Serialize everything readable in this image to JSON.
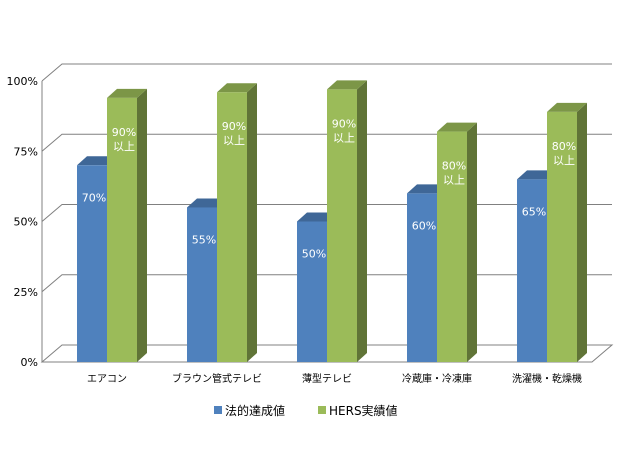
{
  "chart_data": {
    "type": "bar",
    "categories": [
      "エアコン",
      "ブラウン管式テレビ",
      "薄型テレビ",
      "冷蔵庫・冷凍庫",
      "洗濯機・乾燥機"
    ],
    "series": [
      {
        "name": "法的達成値",
        "color": "#4f81bd",
        "values": [
          70,
          55,
          50,
          60,
          65
        ],
        "labels": [
          "70%",
          "55%",
          "50%",
          "60%",
          "65%"
        ]
      },
      {
        "name": "HERS実績値",
        "color": "#9bbb59",
        "values": [
          94,
          96,
          97,
          82,
          89
        ],
        "labels": [
          [
            "90%",
            "以上"
          ],
          [
            "90%",
            "以上"
          ],
          [
            "90%",
            "以上"
          ],
          [
            "80%",
            "以上"
          ],
          [
            "80%",
            "以上"
          ]
        ]
      }
    ],
    "yticks": [
      "0%",
      "25%",
      "50%",
      "75%",
      "100%"
    ],
    "ylim": [
      0,
      100
    ],
    "grid": true,
    "legend": "bottom"
  }
}
